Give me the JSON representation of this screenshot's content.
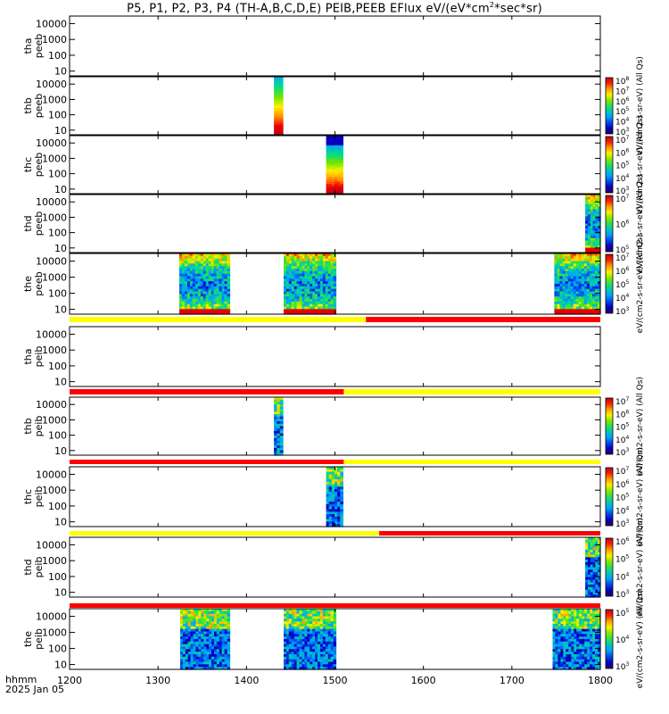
{
  "title": {
    "pre": "P5, P1, P2, P3, P4 (TH-A,B,C,D,E) PEIB,PEEB EFlux eV/(eV*cm",
    "sup": "2",
    "post": "*sec*sr)"
  },
  "footer": {
    "hhmm": "hhmm",
    "date": "2025 Jan 05"
  },
  "chart_data": {
    "type": "heatmap",
    "x_axis": {
      "range": [
        1200,
        1800
      ],
      "ticks": [
        1200,
        1300,
        1400,
        1500,
        1600,
        1700,
        1800
      ]
    },
    "y_axis": {
      "scale": "log",
      "range": [
        5,
        30000
      ],
      "ticks": [
        10,
        100,
        1000,
        10000
      ],
      "tick_labels": [
        "10",
        "100",
        "1000",
        "10000"
      ]
    },
    "panels": [
      {
        "id": "thapeeb",
        "ylabel": [
          "tha",
          "peeb"
        ],
        "colorbar": null,
        "blocks": []
      },
      {
        "id": "thbpeeb",
        "ylabel": [
          "thb",
          "peeb"
        ],
        "colorbar": {
          "exps": [
            3,
            4,
            5,
            6,
            7,
            8
          ],
          "title": "eV/(cm2-s-sr-eV) (All Qs)"
        },
        "blocks": [
          {
            "x": [
              1431,
              1441
            ],
            "style": "hot"
          }
        ]
      },
      {
        "id": "thcpeeb",
        "ylabel": [
          "thc",
          "peeb"
        ],
        "colorbar": {
          "exps": [
            3,
            4,
            5,
            6,
            7
          ],
          "title": "eV/(cm2-s-sr-eV) (All Qs)"
        },
        "blocks": [
          {
            "x": [
              1490,
              1509
            ],
            "style": "cool"
          }
        ]
      },
      {
        "id": "thdpeeb",
        "ylabel": [
          "thd",
          "peeb"
        ],
        "colorbar": {
          "exps": [
            5,
            6,
            7
          ],
          "title": "eV/(cm2-s-sr-eV) (All Qs)"
        },
        "blocks": [
          {
            "x": [
              1783,
              1800
            ],
            "style": "mixed"
          }
        ]
      },
      {
        "id": "thepeeb",
        "ylabel": [
          "the",
          "peeb"
        ],
        "colorbar": {
          "exps": [
            3,
            4,
            5,
            6,
            7
          ],
          "title": "eV/(cm2-s-sr-eV) (All Qs)"
        },
        "blocks": [
          {
            "x": [
              1324,
              1381
            ],
            "style": "mixed"
          },
          {
            "x": [
              1442,
              1501
            ],
            "style": "mixed"
          },
          {
            "x": [
              1748,
              1800
            ],
            "style": "mixed"
          }
        ]
      },
      {
        "id": "thapeib",
        "ylabel": [
          "tha",
          "peib"
        ],
        "colorbar": null,
        "blocks": []
      },
      {
        "id": "thbpeib",
        "ylabel": [
          "thb",
          "peib"
        ],
        "colorbar": {
          "exps": [
            3,
            4,
            5,
            6,
            7
          ],
          "title": "eV/(cm2-s-sr-eV) (All Qs)"
        },
        "blocks": [
          {
            "x": [
              1431,
              1441
            ],
            "style": "ion"
          }
        ]
      },
      {
        "id": "thcpeib",
        "ylabel": [
          "thc",
          "peib"
        ],
        "colorbar": {
          "exps": [
            3,
            4,
            5,
            6,
            7
          ],
          "title": "eV/(cm2-s-sr-eV) (All Qs)"
        },
        "blocks": [
          {
            "x": [
              1490,
              1509
            ],
            "style": "ion"
          }
        ]
      },
      {
        "id": "thdpeib",
        "ylabel": [
          "thd",
          "peib"
        ],
        "colorbar": {
          "exps": [
            3,
            4,
            5,
            6
          ],
          "title": "eV/(cm2-s-sr-eV) (All Qs)"
        },
        "blocks": [
          {
            "x": [
              1783,
              1800
            ],
            "style": "ion"
          }
        ]
      },
      {
        "id": "thepeib",
        "ylabel": [
          "the",
          "peib"
        ],
        "colorbar": {
          "exps": [
            3,
            4,
            5
          ],
          "title": "eV/(cm2-s-sr-eV) (All Qs)"
        },
        "blocks": [
          {
            "x": [
              1325,
              1381
            ],
            "style": "ion"
          },
          {
            "x": [
              1442,
              1501
            ],
            "style": "ion"
          },
          {
            "x": [
              1746,
              1800
            ],
            "style": "ion"
          }
        ]
      }
    ],
    "mode_bars": [
      {
        "after_panel": "thepeeb",
        "segments": [
          {
            "x": [
              1200,
              1535
            ],
            "color": "#ffff00"
          },
          {
            "x": [
              1535,
              1800
            ],
            "color": "#ff0000"
          }
        ]
      },
      {
        "after_panel": "thapeib",
        "segments": [
          {
            "x": [
              1200,
              1510
            ],
            "color": "#ff0000"
          },
          {
            "x": [
              1510,
              1800
            ],
            "color": "#ffff00"
          }
        ]
      },
      {
        "after_panel": "thbpeib",
        "segments": [
          {
            "x": [
              1200,
              1510
            ],
            "color": "#ff0000"
          },
          {
            "x": [
              1510,
              1800
            ],
            "color": "#ffff00"
          }
        ]
      },
      {
        "after_panel": "thcpeib",
        "segments": [
          {
            "x": [
              1200,
              1550
            ],
            "color": "#ffff00"
          },
          {
            "x": [
              1550,
              1800
            ],
            "color": "#ff0000"
          }
        ]
      },
      {
        "after_panel": "thdpeib",
        "segments": [
          {
            "x": [
              1200,
              1800
            ],
            "color": "#ff0000"
          }
        ]
      }
    ]
  }
}
